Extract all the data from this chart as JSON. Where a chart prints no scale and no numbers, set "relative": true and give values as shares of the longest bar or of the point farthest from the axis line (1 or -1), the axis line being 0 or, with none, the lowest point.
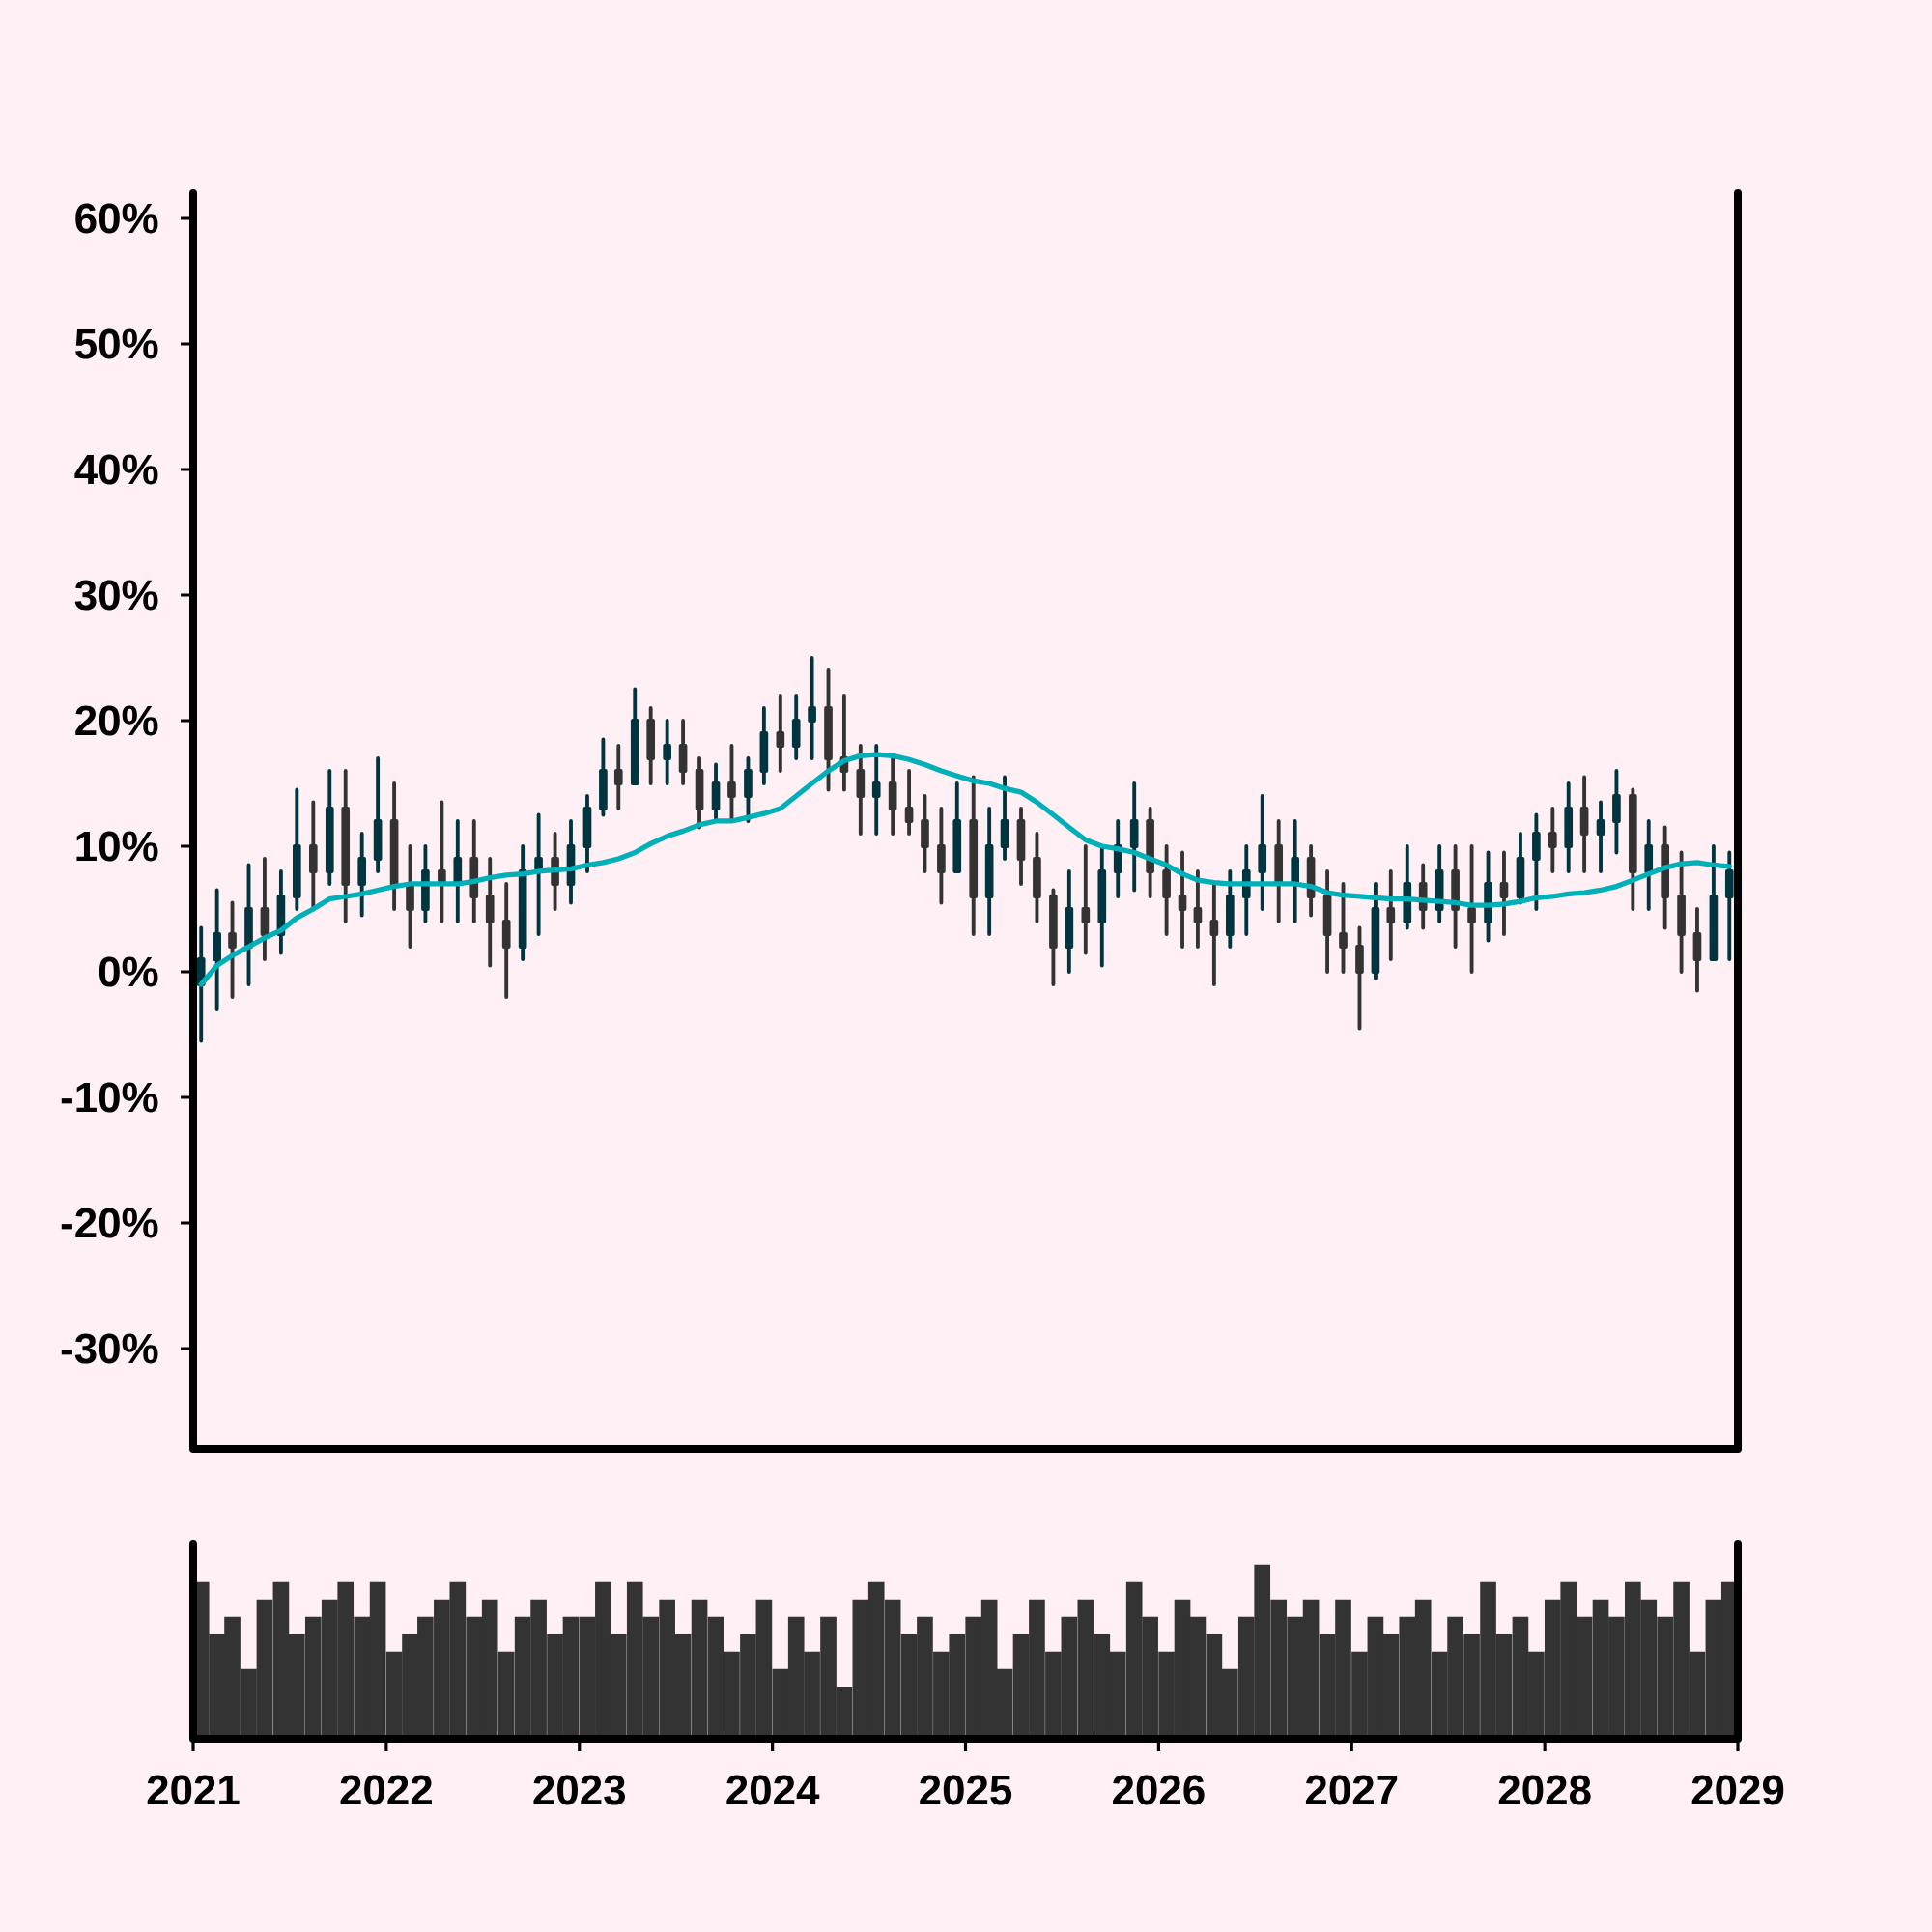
{
  "chart_data": [
    {
      "type": "candlestick",
      "x": [
        "2021-01-16",
        "2021-02-15",
        "2021-03-16",
        "2021-04-16",
        "2021-05-16",
        "2021-06-16",
        "2021-07-16",
        "2021-08-16",
        "2021-09-16",
        "2021-10-16",
        "2021-11-16",
        "2021-12-16",
        "2022-01-16",
        "2022-02-15",
        "2022-03-16",
        "2022-04-16",
        "2022-05-16",
        "2022-06-16",
        "2022-07-16",
        "2022-08-16",
        "2022-09-16",
        "2022-10-16",
        "2022-11-16",
        "2022-12-16",
        "2023-01-16",
        "2023-02-15",
        "2023-03-16",
        "2023-04-16",
        "2023-05-16",
        "2023-06-16",
        "2023-07-16",
        "2023-08-16",
        "2023-09-16",
        "2023-10-16",
        "2023-11-16",
        "2023-12-16",
        "2024-01-16",
        "2024-02-15",
        "2024-03-16",
        "2024-04-16",
        "2024-05-16",
        "2024-06-16",
        "2024-07-16",
        "2024-08-16",
        "2024-09-16",
        "2024-10-16",
        "2024-11-16",
        "2024-12-16",
        "2025-01-16",
        "2025-02-15",
        "2025-03-16",
        "2025-04-16",
        "2025-05-16",
        "2025-06-16",
        "2025-07-16",
        "2025-08-16",
        "2025-09-16",
        "2025-10-16",
        "2025-11-16",
        "2025-12-16",
        "2026-01-16",
        "2026-02-15",
        "2026-03-16",
        "2026-04-16",
        "2026-05-16",
        "2026-06-16",
        "2026-07-16",
        "2026-08-16",
        "2026-09-16",
        "2026-10-16",
        "2026-11-16",
        "2026-12-16",
        "2027-01-16",
        "2027-02-15",
        "2027-03-16",
        "2027-04-16",
        "2027-05-16",
        "2027-06-16",
        "2027-07-16",
        "2027-08-16",
        "2027-09-16",
        "2027-10-16",
        "2027-11-16",
        "2027-12-16",
        "2028-01-16",
        "2028-02-15",
        "2028-03-16",
        "2028-04-16",
        "2028-05-16",
        "2028-06-16",
        "2028-07-16",
        "2028-08-16",
        "2028-09-16",
        "2028-10-16",
        "2028-11-16",
        "2028-12-16"
      ],
      "ohlc": [
        [
          -1,
          3.5,
          -5.5,
          1
        ],
        [
          1,
          6.5,
          -3,
          3
        ],
        [
          3,
          5.5,
          -2,
          2
        ],
        [
          2,
          8.5,
          -1,
          5
        ],
        [
          5,
          9,
          1,
          3
        ],
        [
          3,
          8,
          1.5,
          6
        ],
        [
          6,
          14.5,
          5,
          10
        ],
        [
          10,
          13.5,
          5,
          8
        ],
        [
          8,
          16,
          7,
          13
        ],
        [
          13,
          16,
          4,
          7
        ],
        [
          7,
          11,
          4.5,
          9
        ],
        [
          9,
          17,
          8,
          12
        ],
        [
          12,
          15,
          5,
          7
        ],
        [
          7,
          10,
          2,
          5
        ],
        [
          5,
          10,
          4,
          8
        ],
        [
          8,
          13.5,
          4,
          7
        ],
        [
          7,
          12,
          4,
          9
        ],
        [
          9,
          12,
          4,
          6
        ],
        [
          6,
          9,
          0.5,
          4
        ],
        [
          4,
          7,
          -2,
          2
        ],
        [
          2,
          10,
          1,
          8
        ],
        [
          8,
          12.5,
          3,
          9
        ],
        [
          9,
          11,
          5,
          7
        ],
        [
          7,
          12,
          5.5,
          10
        ],
        [
          10,
          14,
          8,
          13
        ],
        [
          13,
          18.5,
          12.5,
          16
        ],
        [
          16,
          18,
          13,
          15
        ],
        [
          15,
          22.5,
          15,
          20
        ],
        [
          20,
          21,
          15,
          17
        ],
        [
          17,
          20,
          15,
          18
        ],
        [
          18,
          20,
          15,
          16
        ],
        [
          16,
          17,
          11.5,
          13
        ],
        [
          13,
          16.5,
          12,
          15
        ],
        [
          15,
          18,
          12,
          14
        ],
        [
          14,
          17,
          12,
          16
        ],
        [
          16,
          21,
          15,
          19
        ],
        [
          19,
          22,
          16,
          18
        ],
        [
          18,
          22,
          17,
          20
        ],
        [
          20,
          25,
          17,
          21
        ],
        [
          21,
          24,
          14.5,
          17
        ],
        [
          17,
          22,
          14.5,
          16
        ],
        [
          16,
          18,
          11,
          14
        ],
        [
          14,
          18,
          11,
          15
        ],
        [
          15,
          17,
          11,
          13
        ],
        [
          13,
          16,
          11,
          12
        ],
        [
          12,
          14,
          8,
          10
        ],
        [
          10,
          13,
          5.5,
          8
        ],
        [
          8,
          15,
          8,
          12
        ],
        [
          12,
          15.5,
          3,
          6
        ],
        [
          6,
          13,
          3,
          10
        ],
        [
          10,
          15.5,
          9,
          12
        ],
        [
          12,
          13,
          7,
          9
        ],
        [
          9,
          11,
          4,
          6
        ],
        [
          6,
          6.5,
          -1,
          2
        ],
        [
          2,
          8,
          0,
          5
        ],
        [
          5,
          10,
          1.5,
          4
        ],
        [
          4,
          10,
          0.5,
          8
        ],
        [
          8,
          12,
          6,
          10
        ],
        [
          10,
          15,
          6.5,
          12
        ],
        [
          12,
          13,
          6,
          8
        ],
        [
          8,
          10,
          3,
          6
        ],
        [
          6,
          9.5,
          2,
          5
        ],
        [
          5,
          8,
          2,
          4
        ],
        [
          4,
          7,
          -1,
          3
        ],
        [
          3,
          8,
          2,
          6
        ],
        [
          6,
          10,
          3,
          8
        ],
        [
          8,
          14,
          5,
          10
        ],
        [
          10,
          12,
          4,
          7
        ],
        [
          7,
          12,
          4,
          9
        ],
        [
          9,
          10,
          4.5,
          6
        ],
        [
          6,
          8,
          0,
          3
        ],
        [
          3,
          7,
          0,
          2
        ],
        [
          2,
          3.5,
          -4.5,
          0
        ],
        [
          0,
          7,
          -0.5,
          5
        ],
        [
          5,
          8,
          1,
          4
        ],
        [
          4,
          10,
          3.5,
          7
        ],
        [
          7,
          8.5,
          3.5,
          5
        ],
        [
          5,
          10,
          4,
          8
        ],
        [
          8,
          10,
          2,
          5
        ],
        [
          5,
          10,
          0,
          4
        ],
        [
          4,
          9.5,
          2.5,
          7
        ],
        [
          7,
          9.5,
          3,
          6
        ],
        [
          6,
          11,
          5.5,
          9
        ],
        [
          9,
          12.5,
          5,
          11
        ],
        [
          11,
          13,
          8,
          10
        ],
        [
          10,
          15,
          8,
          13
        ],
        [
          13,
          15.5,
          8,
          11
        ],
        [
          11,
          13.5,
          8,
          12
        ],
        [
          12,
          16,
          9.5,
          14
        ],
        [
          14,
          14.5,
          5,
          8
        ],
        [
          8,
          12,
          5,
          10
        ],
        [
          10,
          11.5,
          3.5,
          6
        ],
        [
          6,
          9.5,
          0,
          3
        ],
        [
          3,
          5,
          -1.5,
          1
        ],
        [
          1,
          10,
          1,
          6
        ],
        [
          6,
          9.5,
          1,
          8
        ]
      ],
      "colors": [
        "#00353f",
        "#00353f",
        "#333333",
        "#00353f",
        "#333333",
        "#00353f",
        "#00353f",
        "#333333",
        "#00353f",
        "#333333",
        "#00353f",
        "#00353f",
        "#333333",
        "#333333",
        "#00353f",
        "#333333",
        "#00353f",
        "#333333",
        "#333333",
        "#333333",
        "#00353f",
        "#00353f",
        "#333333",
        "#00353f",
        "#00353f",
        "#00353f",
        "#333333",
        "#00353f",
        "#333333",
        "#00353f",
        "#333333",
        "#333333",
        "#00353f",
        "#333333",
        "#00353f",
        "#00353f",
        "#333333",
        "#00353f",
        "#00353f",
        "#333333",
        "#333333",
        "#333333",
        "#00353f",
        "#333333",
        "#333333",
        "#333333",
        "#333333",
        "#00353f",
        "#333333",
        "#00353f",
        "#00353f",
        "#333333",
        "#333333",
        "#333333",
        "#00353f",
        "#333333",
        "#00353f",
        "#00353f",
        "#00353f",
        "#333333",
        "#333333",
        "#333333",
        "#333333",
        "#333333",
        "#00353f",
        "#00353f",
        "#00353f",
        "#333333",
        "#00353f",
        "#333333",
        "#333333",
        "#333333",
        "#333333",
        "#00353f",
        "#333333",
        "#00353f",
        "#333333",
        "#00353f",
        "#333333",
        "#333333",
        "#00353f",
        "#333333",
        "#00353f",
        "#00353f",
        "#333333",
        "#00353f",
        "#333333",
        "#00353f",
        "#00353f",
        "#333333",
        "#00353f",
        "#333333",
        "#333333",
        "#333333",
        "#00353f",
        "#00353f"
      ],
      "series": [
        {
          "type": "line",
          "color": "#00b0b8",
          "values": [
            -1,
            0.5,
            1.3,
            2,
            2.7,
            3.3,
            4.3,
            5,
            5.8,
            6,
            6.2,
            6.5,
            6.8,
            7,
            7,
            7,
            7,
            7.2,
            7.5,
            7.7,
            7.8,
            8,
            8.1,
            8.2,
            8.5,
            8.7,
            9,
            9.5,
            10.2,
            10.8,
            11.2,
            11.7,
            12,
            12,
            12.3,
            12.6,
            13,
            14,
            15,
            16,
            16.8,
            17.2,
            17.3,
            17.2,
            16.9,
            16.5,
            16,
            15.6,
            15.2,
            15,
            14.6,
            14.3,
            13.5,
            12.5,
            11.5,
            10.5,
            10,
            9.8,
            9.5,
            9,
            8.5,
            7.8,
            7.3,
            7.1,
            7,
            7,
            7,
            7,
            7,
            6.8,
            6.3,
            6.1,
            6,
            5.9,
            5.8,
            5.8,
            5.7,
            5.6,
            5.5,
            5.3,
            5.3,
            5.4,
            5.6,
            5.9,
            6,
            6.2,
            6.3,
            6.5,
            6.8,
            7.3,
            7.8,
            8.3,
            8.6,
            8.7,
            8.5,
            8.4
          ]
        }
      ],
      "xlim": [
        "2021-01-01",
        "2029-01-01"
      ],
      "ylim": [
        -38,
        62
      ],
      "yticks": [
        {
          "value": -30,
          "label": "-30%"
        },
        {
          "value": -20,
          "label": "-20%"
        },
        {
          "value": -10,
          "label": "-10%"
        },
        {
          "value": 0,
          "label": "0%"
        },
        {
          "value": 10,
          "label": "10%"
        },
        {
          "value": 20,
          "label": "20%"
        },
        {
          "value": 30,
          "label": "30%"
        },
        {
          "value": 40,
          "label": "40%"
        },
        {
          "value": 50,
          "label": "50%"
        },
        {
          "value": 60,
          "label": "60%"
        }
      ],
      "tick_labels": "y"
    },
    {
      "type": "bar",
      "x": [
        "2021-01-16",
        "2021-02-15",
        "2021-03-16",
        "2021-04-16",
        "2021-05-16",
        "2021-06-16",
        "2021-07-16",
        "2021-08-16",
        "2021-09-16",
        "2021-10-16",
        "2021-11-16",
        "2021-12-16",
        "2022-01-16",
        "2022-02-15",
        "2022-03-16",
        "2022-04-16",
        "2022-05-16",
        "2022-06-16",
        "2022-07-16",
        "2022-08-16",
        "2022-09-16",
        "2022-10-16",
        "2022-11-16",
        "2022-12-16",
        "2023-01-16",
        "2023-02-15",
        "2023-03-16",
        "2023-04-16",
        "2023-05-16",
        "2023-06-16",
        "2023-07-16",
        "2023-08-16",
        "2023-09-16",
        "2023-10-16",
        "2023-11-16",
        "2023-12-16",
        "2024-01-16",
        "2024-02-15",
        "2024-03-16",
        "2024-04-16",
        "2024-05-16",
        "2024-06-16",
        "2024-07-16",
        "2024-08-16",
        "2024-09-16",
        "2024-10-16",
        "2024-11-16",
        "2024-12-16",
        "2025-01-16",
        "2025-02-15",
        "2025-03-16",
        "2025-04-16",
        "2025-05-16",
        "2025-06-16",
        "2025-07-16",
        "2025-08-16",
        "2025-09-16",
        "2025-10-16",
        "2025-11-16",
        "2025-12-16",
        "2026-01-16",
        "2026-02-15",
        "2026-03-16",
        "2026-04-16",
        "2026-05-16",
        "2026-06-16",
        "2026-07-16",
        "2026-08-16",
        "2026-09-16",
        "2026-10-16",
        "2026-11-16",
        "2026-12-16",
        "2027-01-16",
        "2027-02-15",
        "2027-03-16",
        "2027-04-16",
        "2027-05-16",
        "2027-06-16",
        "2027-07-16",
        "2027-08-16",
        "2027-09-16",
        "2027-10-16",
        "2027-11-16",
        "2027-12-16",
        "2028-01-16",
        "2028-02-15",
        "2028-03-16",
        "2028-04-16",
        "2028-05-16",
        "2028-06-16",
        "2028-07-16",
        "2028-08-16",
        "2028-09-16",
        "2028-10-16",
        "2028-11-16",
        "2028-12-16"
      ],
      "values": [
        0.9,
        0.6,
        0.7,
        0.4,
        0.8,
        0.9,
        0.6,
        0.7,
        0.8,
        0.9,
        0.7,
        0.9,
        0.5,
        0.6,
        0.7,
        0.8,
        0.9,
        0.7,
        0.8,
        0.5,
        0.7,
        0.8,
        0.6,
        0.7,
        0.7,
        0.9,
        0.6,
        0.9,
        0.7,
        0.8,
        0.6,
        0.8,
        0.7,
        0.5,
        0.6,
        0.8,
        0.4,
        0.7,
        0.5,
        0.7,
        0.3,
        0.8,
        0.9,
        0.8,
        0.6,
        0.7,
        0.5,
        0.6,
        0.7,
        0.8,
        0.4,
        0.6,
        0.8,
        0.5,
        0.7,
        0.8,
        0.6,
        0.5,
        0.9,
        0.7,
        0.5,
        0.8,
        0.7,
        0.6,
        0.4,
        0.7,
        1,
        0.8,
        0.7,
        0.8,
        0.6,
        0.8,
        0.5,
        0.7,
        0.6,
        0.7,
        0.8,
        0.5,
        0.7,
        0.6,
        0.9,
        0.6,
        0.7,
        0.5,
        0.8,
        0.9,
        0.7,
        0.8,
        0.7,
        0.9,
        0.8,
        0.7,
        0.9,
        0.5,
        0.8,
        0.9
      ],
      "color": "#333333",
      "relative": true,
      "xlim": [
        "2021-01-01",
        "2029-01-01"
      ],
      "xticks": [
        "2021",
        "2022",
        "2023",
        "2024",
        "2025",
        "2026",
        "2027",
        "2028",
        "2029"
      ],
      "tick_labels": "x"
    }
  ]
}
